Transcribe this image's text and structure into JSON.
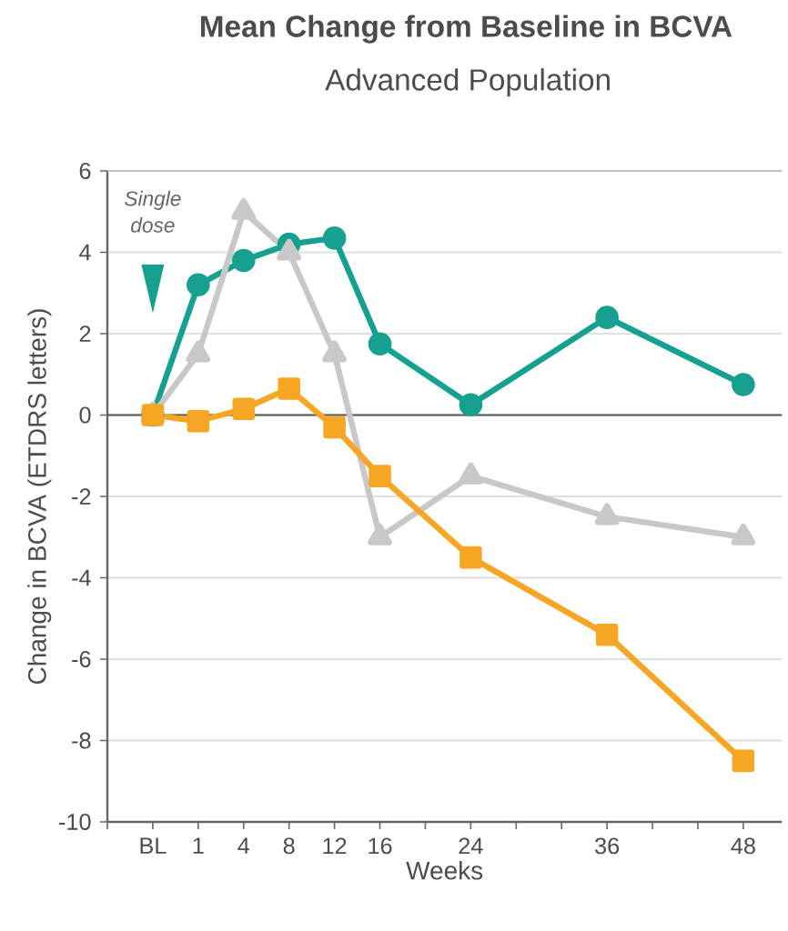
{
  "chart_data": {
    "type": "line",
    "title": "Mean Change from Baseline in BCVA",
    "subtitle": "Advanced Population",
    "xlabel": "Weeks",
    "ylabel": "Change in BCVA (ETDRS letters)",
    "categories": [
      null,
      "BL",
      "1",
      "4",
      "8",
      "12",
      "16",
      null,
      "24",
      null,
      null,
      "36",
      null,
      null,
      "48"
    ],
    "series": [
      {
        "color": "#16a08f",
        "marker": "circle",
        "values": [
          null,
          0,
          3.2,
          3.8,
          4.2,
          4.35,
          1.75,
          null,
          0.25,
          null,
          null,
          2.4,
          null,
          null,
          0.75
        ]
      },
      {
        "color": "#c8c8c8",
        "marker": "triangle",
        "values": [
          null,
          0,
          1.5,
          5.0,
          4.0,
          1.5,
          -3.0,
          null,
          -1.5,
          null,
          null,
          -2.5,
          null,
          null,
          -3.0
        ]
      },
      {
        "color": "#f6a623",
        "marker": "square",
        "values": [
          null,
          0,
          -0.15,
          0.15,
          0.65,
          -0.3,
          -1.5,
          null,
          -3.5,
          null,
          null,
          -5.4,
          null,
          null,
          -8.5
        ]
      }
    ],
    "ylim": [
      -10,
      6
    ],
    "yticks": [
      -10,
      -8,
      -6,
      -4,
      -2,
      0,
      2,
      4,
      6
    ],
    "grid": "y",
    "line_style": "solid",
    "ref_lines": [
      {
        "axis": "y",
        "value": 0,
        "color": "#555555"
      }
    ],
    "annotations": [
      "Single dose"
    ]
  }
}
